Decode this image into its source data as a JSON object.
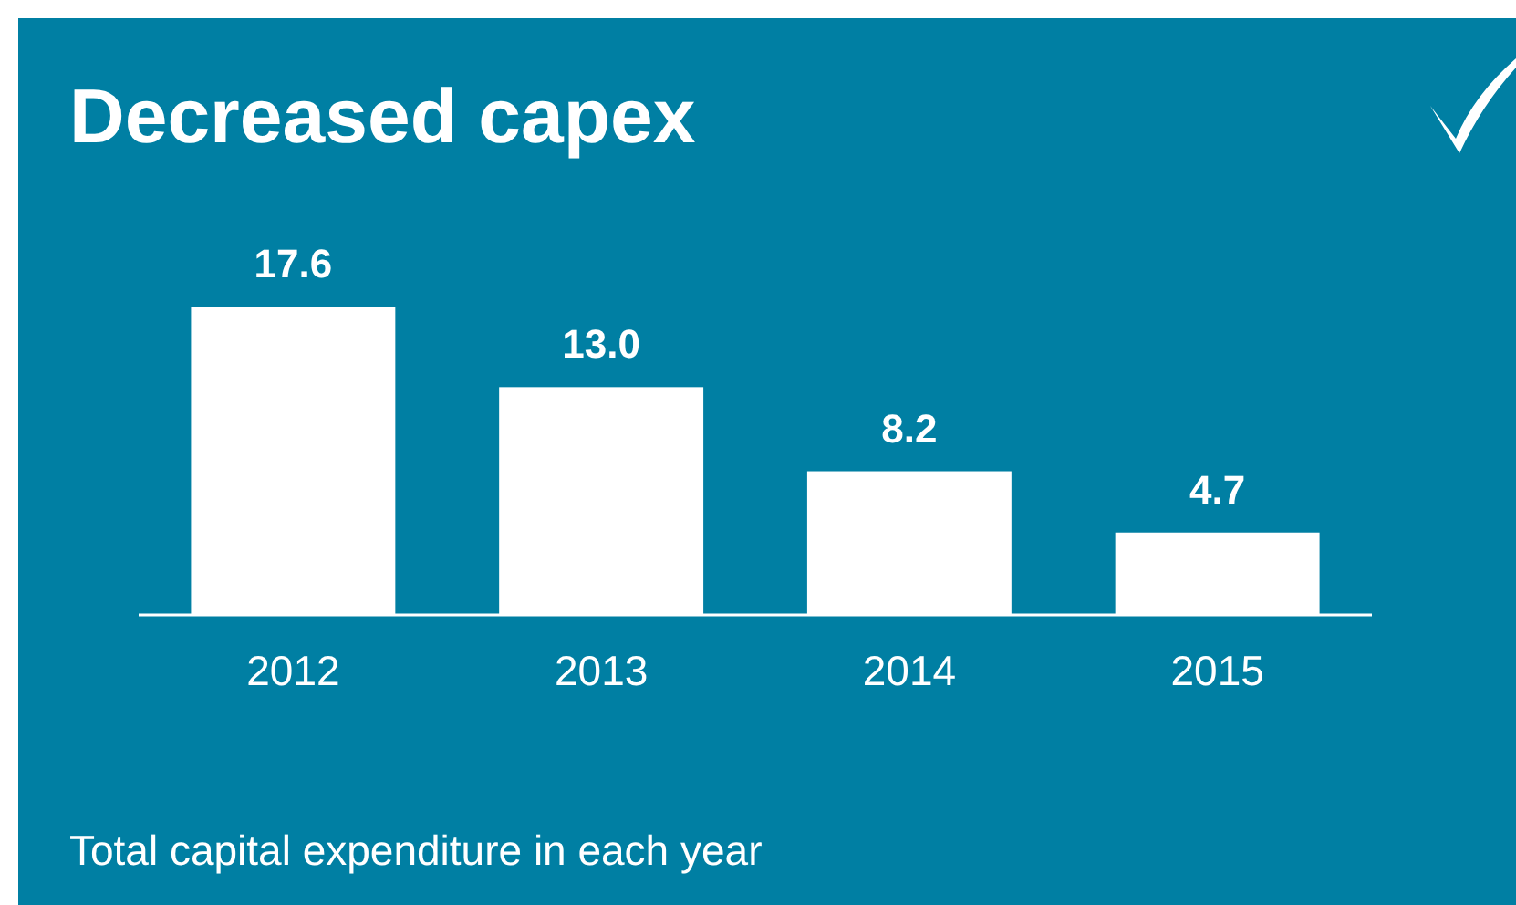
{
  "chart_data": {
    "type": "bar",
    "title": "Decreased capex",
    "categories": [
      "2012",
      "2013",
      "2014",
      "2015"
    ],
    "values": [
      17.6,
      13.0,
      8.2,
      4.7
    ],
    "value_labels": [
      "17.6",
      "13.0",
      "8.2",
      "4.7"
    ],
    "color": "#ffffff",
    "annotations": [
      "Total capital expenditure in each year"
    ]
  }
}
